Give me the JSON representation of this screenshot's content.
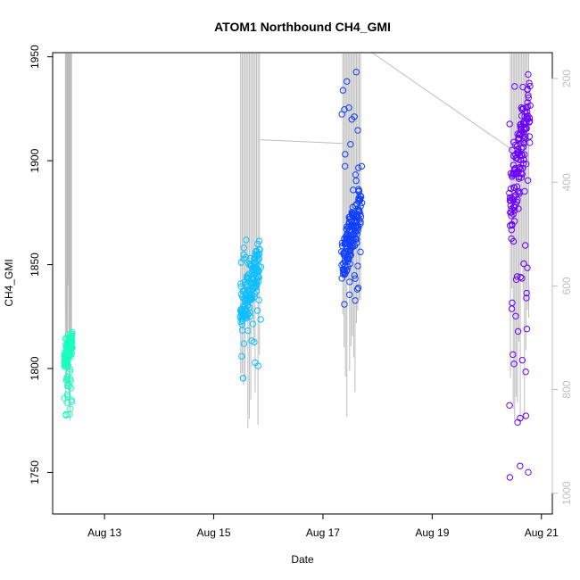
{
  "chart_data": {
    "type": "scatter",
    "title": "ATOM1 Northbound CH4_GMI",
    "xlabel": "Date",
    "ylabel": "CH4_GMI",
    "x_ticks": [
      "Aug 13",
      "Aug 15",
      "Aug 17",
      "Aug 19",
      "Aug 21"
    ],
    "x_tick_values": [
      13,
      15,
      17,
      19,
      21
    ],
    "xlim": [
      12.05,
      21.2
    ],
    "y_ticks": [
      1750,
      1800,
      1850,
      1900,
      1950
    ],
    "ylim": [
      1730,
      1952
    ],
    "y2_ticks": [
      200,
      400,
      600,
      800,
      1000
    ],
    "y2lim": [
      1040,
      150
    ],
    "grid": false,
    "legend": "none",
    "colors": {
      "series1": "#1affbf",
      "series2": "#0fbfff",
      "series3": "#0f3fff",
      "series4": "#6a00ff",
      "secondary": "#bdbdbd"
    },
    "series": [
      {
        "color": "#1affbf",
        "x_start": 12.28,
        "x_end": 12.4,
        "y_min": 1776,
        "y_max": 1818,
        "core_min": 1800,
        "core_max": 1818
      },
      {
        "color": "#0fbfff",
        "x_start": 15.48,
        "x_end": 15.85,
        "y_min": 1792,
        "y_max": 1864,
        "core_min": 1815,
        "core_max": 1864
      },
      {
        "color": "#0f3fff",
        "x_start": 17.35,
        "x_end": 17.7,
        "y_min": 1824,
        "y_max": 1943,
        "core_min": 1840,
        "core_max": 1890
      },
      {
        "color": "#6a00ff",
        "x_start": 20.42,
        "x_end": 20.78,
        "y_min": 1740,
        "y_max": 1943,
        "core_min": 1860,
        "core_max": 1943
      }
    ],
    "secondary_series": {
      "description_axis": "right",
      "segments": [
        {
          "x": [
            12.4,
            15.3
          ],
          "y2": [
            150,
            150
          ]
        },
        {
          "x": [
            15.85,
            17.35
          ],
          "y2": [
            318,
            325
          ]
        },
        {
          "x": [
            17.9,
            20.5
          ],
          "y2": [
            150,
            340
          ]
        }
      ]
    }
  }
}
